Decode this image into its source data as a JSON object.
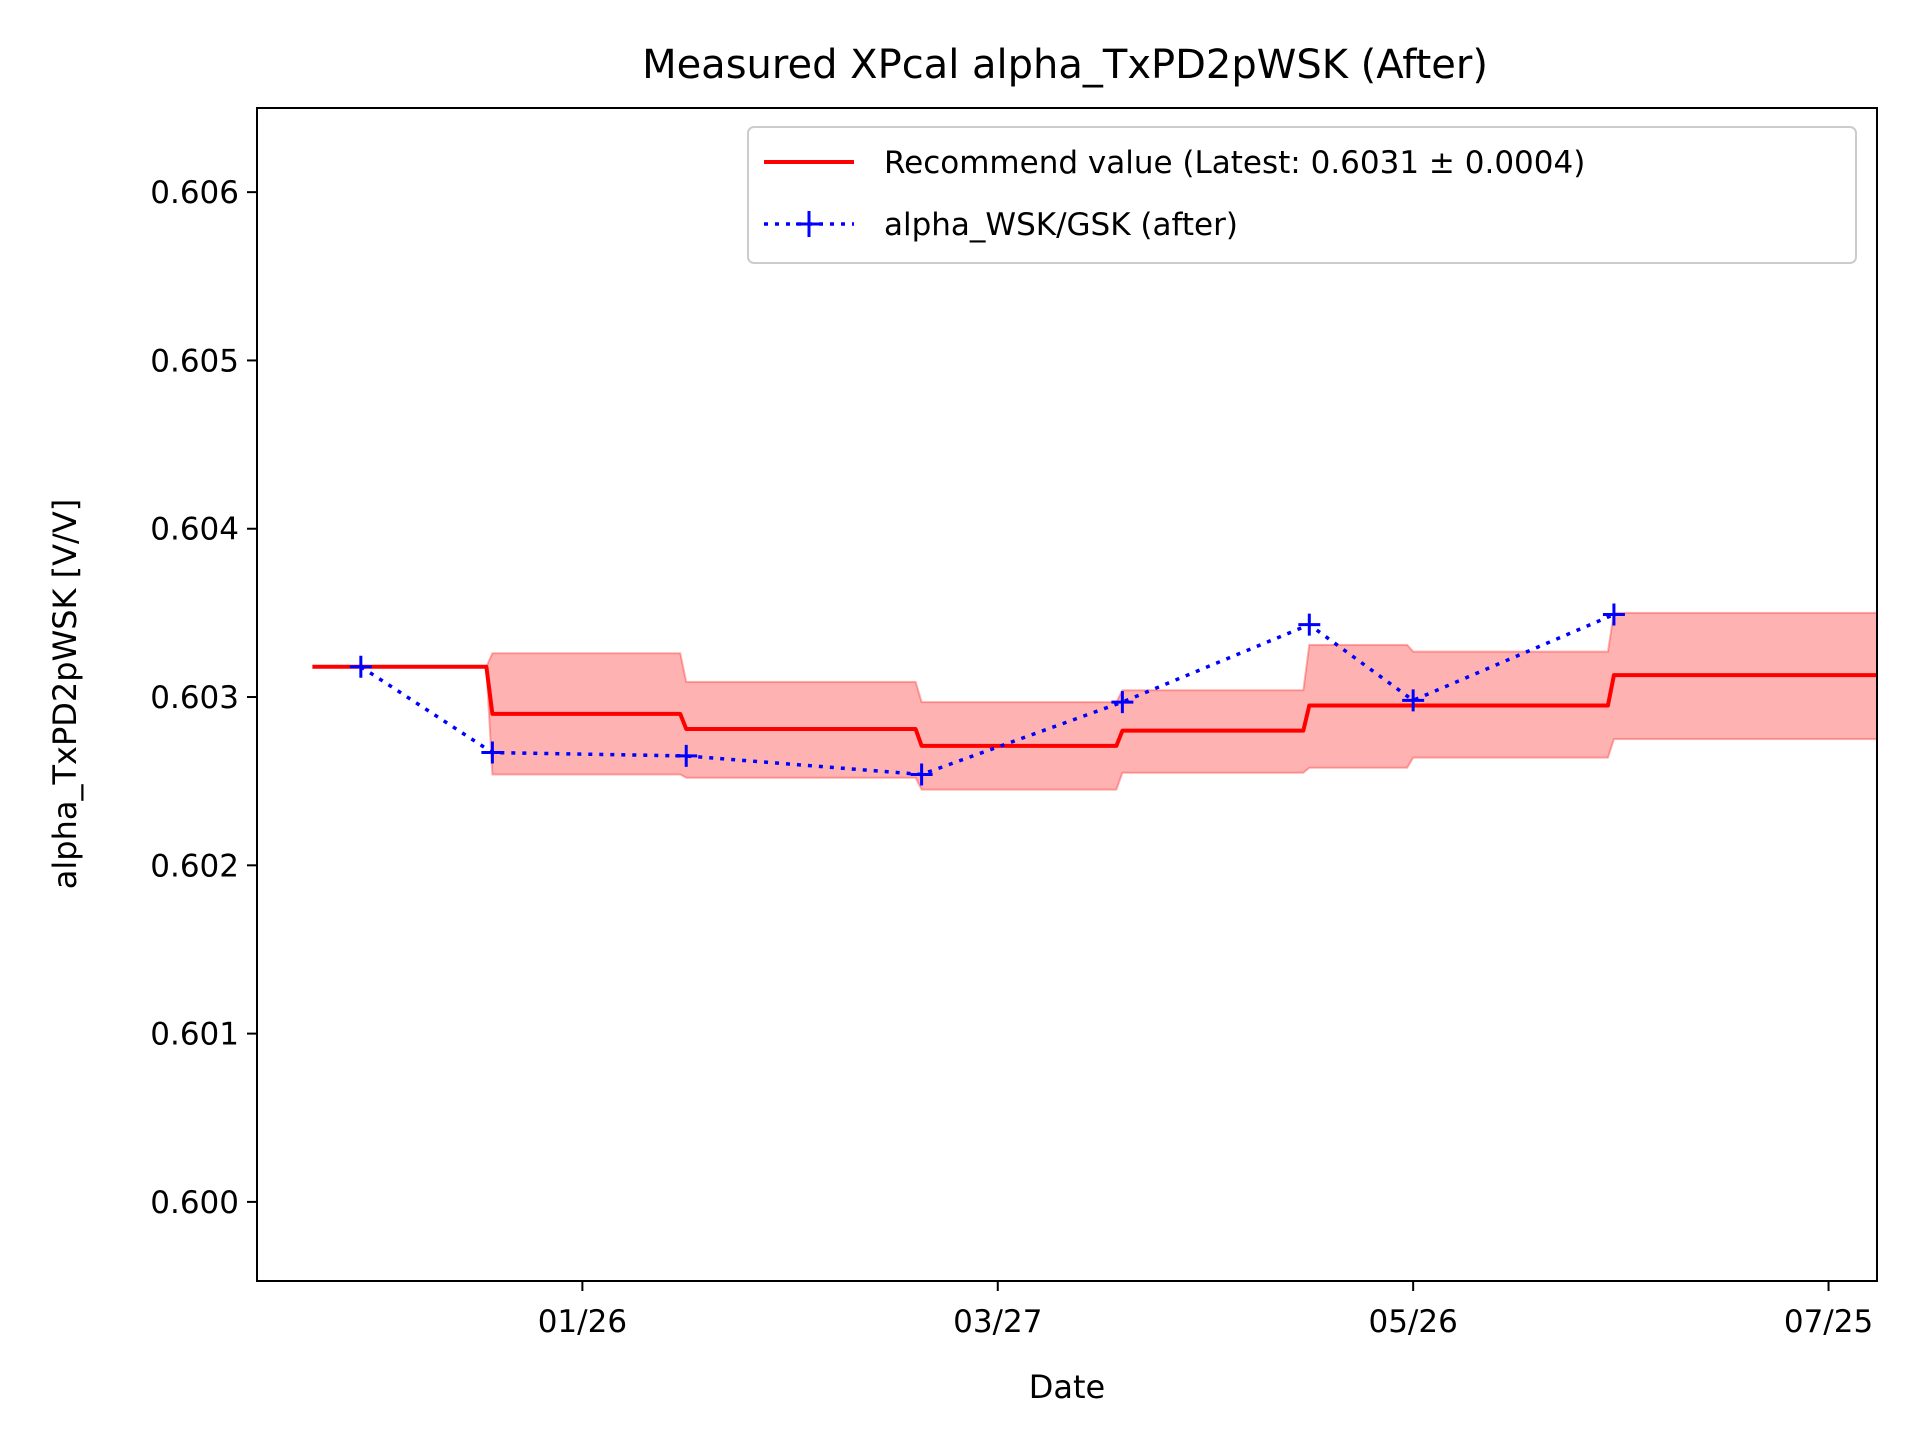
{
  "chart_data": {
    "type": "line",
    "title": "Measured XPcal alpha_TxPD2pWSK (After)",
    "xlabel": "Date",
    "ylabel": "alpha_TxPD2pWSK [V/V]",
    "x_ticks": [
      "01/26",
      "03/27",
      "05/26",
      "07/25"
    ],
    "y_ticks": [
      "0.600",
      "0.601",
      "0.602",
      "0.603",
      "0.604",
      "0.605",
      "0.606"
    ],
    "x_axis": {
      "tick_dates": [
        "01/26",
        "03/27",
        "05/26",
        "07/25"
      ],
      "range": [
        "12/10",
        "08/01"
      ]
    },
    "ylim": [
      0.59953,
      0.6065
    ],
    "grid": false,
    "legend_position": "top-right",
    "colors": {
      "recommend": "#ff0000",
      "band": "#ff0000",
      "measured": "#0000ff"
    },
    "legend": [
      {
        "label": "Recommend value (Latest: 0.6031 ± 0.0004)",
        "style": "solid-red"
      },
      {
        "label": "alpha_WSK/GSK (after)",
        "style": "dotted-blue-plus"
      }
    ],
    "series": [
      {
        "name": "Recommend value (Latest: 0.6031 ± 0.0004)",
        "kind": "step",
        "points": [
          {
            "x": "12/18",
            "y": 0.60318,
            "band": null
          },
          {
            "x": "01/13",
            "y": 0.6029,
            "lo": 0.60254,
            "hi": 0.60326
          },
          {
            "x": "02/10",
            "y": 0.60281,
            "lo": 0.60252,
            "hi": 0.60309
          },
          {
            "x": "03/16",
            "y": 0.60271,
            "lo": 0.60245,
            "hi": 0.60297
          },
          {
            "x": "04/14",
            "y": 0.6028,
            "lo": 0.60255,
            "hi": 0.60304
          },
          {
            "x": "05/11",
            "y": 0.60295,
            "lo": 0.60258,
            "hi": 0.60331
          },
          {
            "x": "05/26",
            "y": 0.60295,
            "lo": 0.60264,
            "hi": 0.60327
          },
          {
            "x": "06/24",
            "y": 0.60313,
            "lo": 0.60275,
            "hi": 0.6035
          },
          {
            "x": "08/01",
            "y": 0.60313,
            "lo": 0.60275,
            "hi": 0.6035
          }
        ]
      },
      {
        "name": "alpha_WSK/GSK (after)",
        "kind": "line",
        "points": [
          {
            "x": "12/25",
            "y": 0.60318
          },
          {
            "x": "01/13",
            "y": 0.60267
          },
          {
            "x": "02/10",
            "y": 0.60265
          },
          {
            "x": "03/16",
            "y": 0.60254
          },
          {
            "x": "04/14",
            "y": 0.60297
          },
          {
            "x": "05/11",
            "y": 0.60343
          },
          {
            "x": "05/26",
            "y": 0.60298
          },
          {
            "x": "06/24",
            "y": 0.60349
          }
        ]
      }
    ]
  }
}
